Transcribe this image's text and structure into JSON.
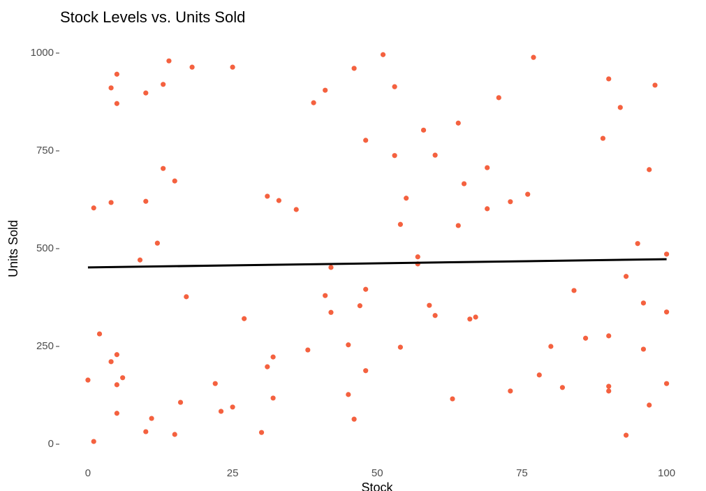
{
  "chart_data": {
    "type": "scatter",
    "title": "Stock Levels vs. Units Sold",
    "x_label": "Stock",
    "y_label": "Units Sold",
    "xlim": [
      -5,
      105
    ],
    "ylim": [
      -50,
      1050
    ],
    "xticks": [
      0,
      25,
      50,
      75,
      100
    ],
    "yticks": [
      0,
      250,
      500,
      750,
      1000
    ],
    "grid": false,
    "series": [
      {
        "color": "#f4613f",
        "x": [
          0,
          1,
          1,
          2,
          4,
          4,
          4,
          5,
          5,
          5,
          5,
          5,
          6,
          9,
          10,
          10,
          10,
          11,
          12,
          13,
          13,
          14,
          15,
          15,
          16,
          17,
          18,
          22,
          23,
          25,
          25,
          27,
          30,
          31,
          31,
          32,
          32,
          33,
          36,
          38,
          39,
          41,
          41,
          42,
          42,
          45,
          45,
          46,
          46,
          47,
          48,
          48,
          48,
          51,
          53,
          53,
          54,
          54,
          55,
          57,
          57,
          58,
          59,
          60,
          60,
          63,
          64,
          64,
          65,
          66,
          67,
          69,
          69,
          71,
          73,
          73,
          76,
          77,
          78,
          80,
          82,
          84,
          86,
          89,
          90,
          90,
          90,
          90,
          92,
          93,
          93,
          95,
          96,
          96,
          97,
          97,
          98,
          100,
          100,
          100
        ],
        "values": [
          164,
          7,
          604,
          282,
          911,
          618,
          211,
          946,
          871,
          229,
          152,
          79,
          170,
          471,
          898,
          621,
          32,
          66,
          514,
          920,
          705,
          980,
          673,
          25,
          107,
          377,
          964,
          155,
          84,
          964,
          95,
          321,
          30,
          634,
          198,
          223,
          118,
          623,
          600,
          241,
          873,
          905,
          380,
          452,
          337,
          254,
          127,
          961,
          64,
          354,
          777,
          396,
          188,
          996,
          914,
          738,
          562,
          248,
          629,
          479,
          461,
          803,
          355,
          739,
          329,
          116,
          821,
          559,
          666,
          320,
          325,
          707,
          602,
          886,
          620,
          136,
          639,
          989,
          177,
          250,
          145,
          393,
          271,
          782,
          934,
          277,
          148,
          136,
          861,
          429,
          23,
          513,
          361,
          243,
          702,
          100,
          918,
          486,
          338,
          155
        ]
      }
    ],
    "trend_line": {
      "color": "#000000",
      "x": [
        0,
        100
      ],
      "values": [
        452,
        473
      ]
    }
  }
}
